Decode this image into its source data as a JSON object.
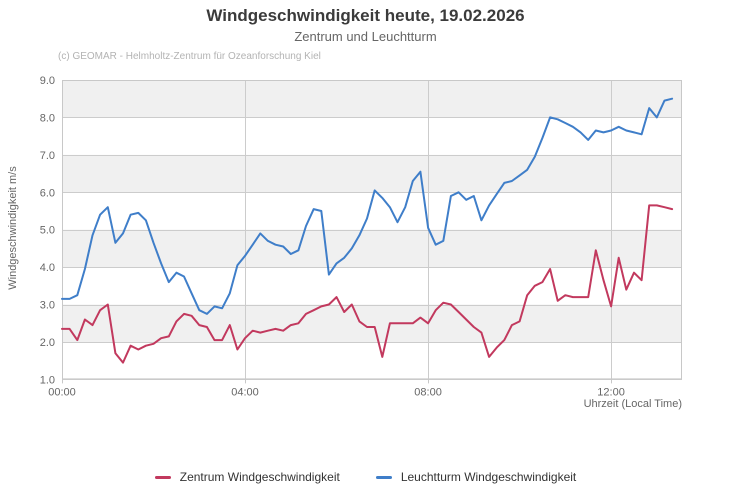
{
  "header": {
    "title": "Windgeschwindigkeit heute, 19.02.2026",
    "subtitle": "Zentrum und Leuchtturm"
  },
  "credit": "(c) GEOMAR - Helmholtz-Zentrum für Ozeanforschung Kiel",
  "chart_data": {
    "type": "line",
    "title": "Windgeschwindigkeit heute, 19.02.2026",
    "subtitle": "Zentrum und Leuchtturm",
    "xlabel": "Uhrzeit (Local Time)",
    "ylabel": "Windgeschwindigkeit m/s",
    "ylim": [
      1.0,
      9.0
    ],
    "y_ticks": [
      1.0,
      2.0,
      3.0,
      4.0,
      5.0,
      6.0,
      7.0,
      8.0,
      9.0
    ],
    "xlim_hours": [
      0,
      13.55
    ],
    "x_ticks": [
      {
        "h": 0,
        "label": "00:00"
      },
      {
        "h": 4,
        "label": "04:00"
      },
      {
        "h": 8,
        "label": "08:00"
      },
      {
        "h": 12,
        "label": "12:00"
      }
    ],
    "interval_minutes": 10,
    "start_time": "00:00",
    "grid": true,
    "legend_position": "bottom",
    "band_color": "#f0f0f0",
    "grid_color": "#cccccc",
    "border_color": "#c8c8c8",
    "tick_text_color": "#666666",
    "series": [
      {
        "name": "Zentrum Windgeschwindigkeit",
        "color": "#c2395e",
        "values": [
          2.35,
          2.35,
          2.05,
          2.6,
          2.45,
          2.85,
          3.0,
          1.7,
          1.45,
          1.9,
          1.8,
          1.9,
          1.95,
          2.1,
          2.15,
          2.55,
          2.75,
          2.7,
          2.45,
          2.4,
          2.05,
          2.05,
          2.45,
          1.8,
          2.1,
          2.3,
          2.25,
          2.3,
          2.35,
          2.3,
          2.45,
          2.5,
          2.75,
          2.85,
          2.95,
          3.0,
          3.2,
          2.8,
          3.0,
          2.55,
          2.4,
          2.4,
          1.6,
          2.5,
          2.5,
          2.5,
          2.5,
          2.65,
          2.5,
          2.85,
          3.05,
          3.0,
          2.8,
          2.6,
          2.4,
          2.25,
          1.6,
          1.85,
          2.05,
          2.45,
          2.55,
          3.25,
          3.5,
          3.6,
          3.95,
          3.1,
          3.25,
          3.2,
          3.2,
          3.2,
          4.45,
          3.65,
          2.95,
          4.25,
          3.4,
          3.85,
          3.65,
          5.65,
          5.65,
          5.6,
          5.55
        ]
      },
      {
        "name": "Leuchtturm Windgeschwindigkeit",
        "color": "#3f7ec9",
        "values": [
          3.15,
          3.15,
          3.25,
          3.95,
          4.85,
          5.4,
          5.6,
          4.65,
          4.9,
          5.4,
          5.45,
          5.25,
          4.65,
          4.1,
          3.6,
          3.85,
          3.75,
          3.3,
          2.85,
          2.75,
          2.95,
          2.9,
          3.3,
          4.05,
          4.3,
          4.6,
          4.9,
          4.7,
          4.6,
          4.55,
          4.35,
          4.45,
          5.1,
          5.55,
          5.5,
          3.8,
          4.1,
          4.25,
          4.5,
          4.85,
          5.3,
          6.05,
          5.85,
          5.6,
          5.2,
          5.6,
          6.3,
          6.55,
          5.05,
          4.6,
          4.7,
          5.9,
          6.0,
          5.8,
          5.9,
          5.25,
          5.65,
          5.95,
          6.25,
          6.3,
          6.45,
          6.6,
          6.95,
          7.45,
          8.0,
          7.95,
          7.85,
          7.75,
          7.6,
          7.4,
          7.65,
          7.6,
          7.65,
          7.75,
          7.65,
          7.6,
          7.55,
          8.25,
          8.0,
          8.45,
          8.5
        ]
      }
    ]
  }
}
